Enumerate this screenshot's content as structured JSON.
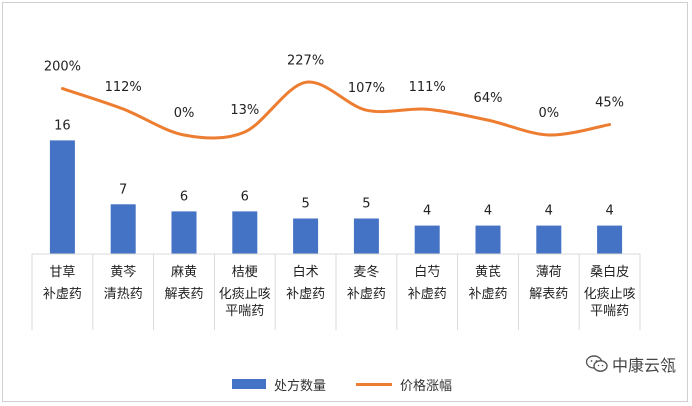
{
  "chart_data": {
    "type": "bar",
    "categories": [
      [
        "甘草",
        "补虚药"
      ],
      [
        "黄芩",
        "清热药"
      ],
      [
        "麻黄",
        "解表药"
      ],
      [
        "桔梗",
        "化痰止咳",
        "平喘药"
      ],
      [
        "白术",
        "补虚药"
      ],
      [
        "麦冬",
        "补虚药"
      ],
      [
        "白芍",
        "补虚药"
      ],
      [
        "黄芪",
        "补虚药"
      ],
      [
        "薄荷",
        "解表药"
      ],
      [
        "桑白皮",
        "化痰止咳",
        "平喘药"
      ]
    ],
    "series": [
      {
        "name": "处方数量",
        "kind": "bar",
        "color": "#4472C4",
        "values": [
          16,
          7,
          6,
          6,
          5,
          5,
          4,
          4,
          4,
          4
        ],
        "labels": [
          "16",
          "7",
          "6",
          "6",
          "5",
          "5",
          "4",
          "4",
          "4",
          "4"
        ]
      },
      {
        "name": "价格涨幅",
        "kind": "line",
        "color": "#ED7D31",
        "values": [
          200,
          112,
          0,
          13,
          227,
          107,
          111,
          64,
          0,
          45
        ],
        "labels": [
          "200%",
          "112%",
          "0%",
          "13%",
          "227%",
          "107%",
          "111%",
          "64%",
          "0%",
          "45%"
        ]
      }
    ],
    "legend_position": "bottom",
    "grid": false
  },
  "watermark": {
    "icon": "wechat-icon",
    "text": "中康云瓴"
  }
}
